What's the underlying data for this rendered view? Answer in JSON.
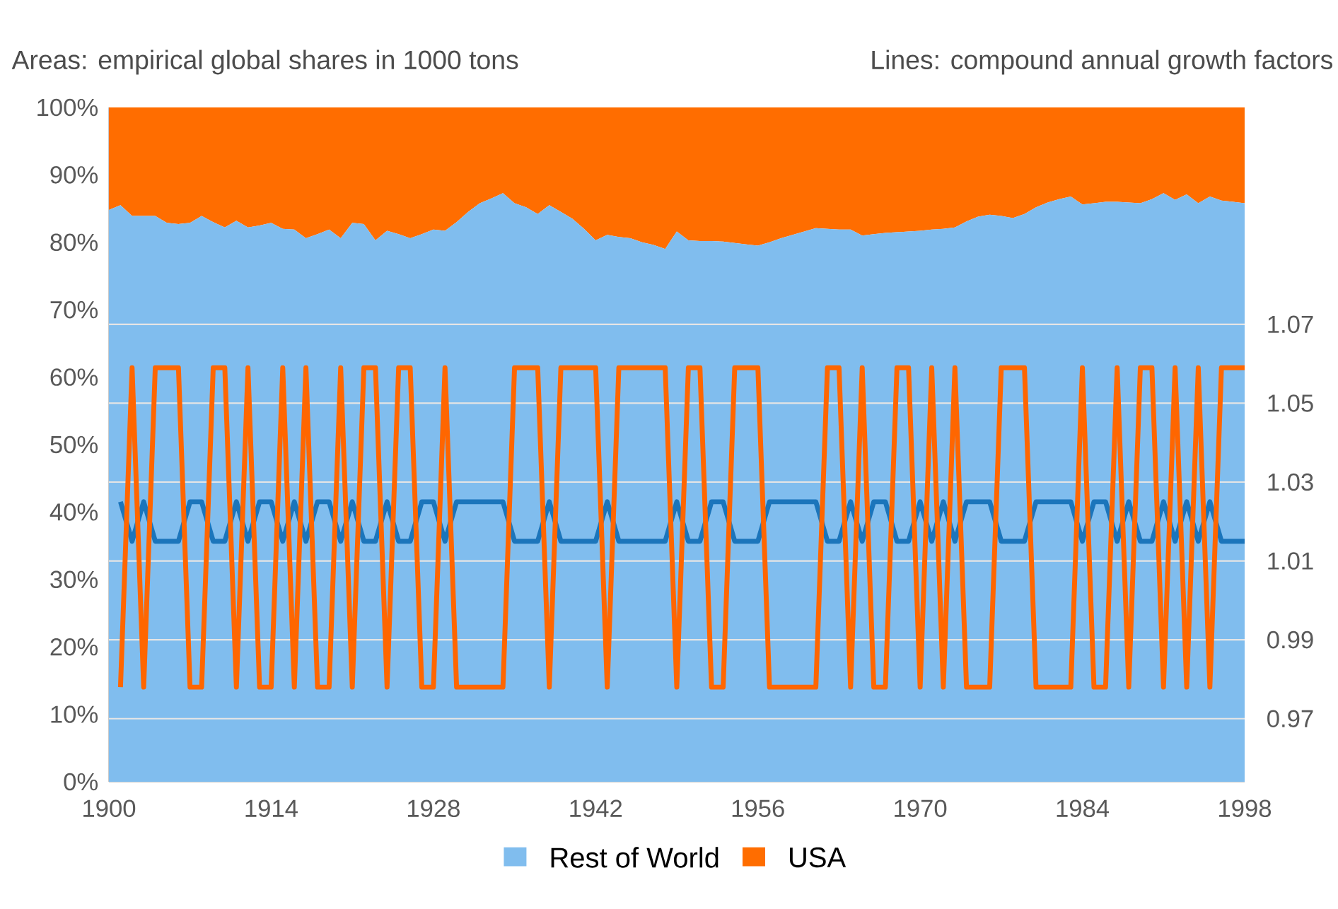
{
  "chart_data": {
    "type": "area",
    "stacked": true,
    "legend": "bottom",
    "grid": "y",
    "annotations": [
      "Areas: empirical global shares in 1000 tons",
      "Lines: compound annual growth factors"
    ],
    "x": [
      1900,
      1901,
      1902,
      1903,
      1904,
      1905,
      1906,
      1907,
      1908,
      1909,
      1910,
      1911,
      1912,
      1913,
      1914,
      1915,
      1916,
      1917,
      1918,
      1919,
      1920,
      1921,
      1922,
      1923,
      1924,
      1925,
      1926,
      1927,
      1928,
      1929,
      1930,
      1931,
      1932,
      1933,
      1934,
      1935,
      1936,
      1937,
      1938,
      1939,
      1940,
      1941,
      1942,
      1943,
      1944,
      1945,
      1946,
      1947,
      1948,
      1949,
      1950,
      1951,
      1952,
      1953,
      1954,
      1955,
      1956,
      1957,
      1958,
      1959,
      1960,
      1961,
      1962,
      1963,
      1964,
      1965,
      1966,
      1967,
      1968,
      1969,
      1970,
      1971,
      1972,
      1973,
      1974,
      1975,
      1976,
      1977,
      1978,
      1979,
      1980,
      1981,
      1982,
      1983,
      1984,
      1985,
      1986,
      1987,
      1988,
      1989,
      1990,
      1991,
      1992,
      1993,
      1994,
      1995,
      1996,
      1997,
      1998
    ],
    "xlim": [
      1900,
      1998
    ],
    "xticks": [
      1900,
      1914,
      1928,
      1942,
      1956,
      1970,
      1984,
      1998
    ],
    "ylim": [
      0,
      100
    ],
    "yticks": [
      {
        "value": 0,
        "label": "0%"
      },
      {
        "value": 10,
        "label": "10%"
      },
      {
        "value": 20,
        "label": "20%"
      },
      {
        "value": 30,
        "label": "30%"
      },
      {
        "value": 40,
        "label": "40%"
      },
      {
        "value": 50,
        "label": "50%"
      },
      {
        "value": 60,
        "label": "60%"
      },
      {
        "value": 70,
        "label": "70%"
      },
      {
        "value": 80,
        "label": "80%"
      },
      {
        "value": 90,
        "label": "90%"
      },
      {
        "value": 100,
        "label": "100%"
      }
    ],
    "y2lim": [
      0.954,
      1.125
    ],
    "y2ticks": [
      0.97,
      0.99,
      1.01,
      1.03,
      1.05,
      1.07
    ],
    "series": [
      {
        "name": "Rest of World",
        "color": "#80bdee",
        "values": [
          84.8,
          85.5,
          83.9,
          83.9,
          83.9,
          82.9,
          82.7,
          82.9,
          83.9,
          83.0,
          82.2,
          83.2,
          82.2,
          82.5,
          82.9,
          82.0,
          81.9,
          80.6,
          81.2,
          81.9,
          80.6,
          82.9,
          82.7,
          80.3,
          81.7,
          81.2,
          80.6,
          81.2,
          81.9,
          81.7,
          83.0,
          84.5,
          85.8,
          86.5,
          87.3,
          85.8,
          85.2,
          84.2,
          85.5,
          84.5,
          83.5,
          82.0,
          80.3,
          81.1,
          80.8,
          80.6,
          80.0,
          79.6,
          79.0,
          81.6,
          80.3,
          80.2,
          80.2,
          80.1,
          79.9,
          79.7,
          79.5,
          80.0,
          80.6,
          81.1,
          81.6,
          82.1,
          82.0,
          81.9,
          81.9,
          81.0,
          81.2,
          81.4,
          81.5,
          81.6,
          81.7,
          81.9,
          82.0,
          82.2,
          83.1,
          83.8,
          84.1,
          83.9,
          83.6,
          84.2,
          85.2,
          85.9,
          86.4,
          86.8,
          85.6,
          85.8,
          86.0,
          86.0,
          85.9,
          85.8,
          86.4,
          87.3,
          86.3,
          87.1,
          85.8,
          86.8,
          86.2,
          86.0,
          85.8
        ]
      },
      {
        "name": "USA",
        "color": "#ff6d00",
        "values": [
          15.2,
          14.5,
          16.1,
          16.1,
          16.1,
          17.1,
          17.3,
          17.1,
          16.1,
          17.0,
          17.8,
          16.8,
          17.8,
          17.5,
          17.1,
          18.0,
          18.1,
          19.4,
          18.8,
          18.1,
          19.4,
          17.1,
          17.3,
          19.7,
          18.3,
          18.8,
          19.4,
          18.8,
          18.1,
          18.3,
          17.0,
          15.5,
          14.2,
          13.5,
          12.7,
          14.2,
          14.8,
          15.8,
          14.5,
          15.5,
          16.5,
          18.0,
          19.7,
          18.9,
          19.2,
          19.4,
          20.0,
          20.4,
          21.0,
          18.4,
          19.7,
          19.8,
          19.8,
          19.9,
          20.1,
          20.3,
          20.5,
          20.0,
          19.4,
          18.9,
          18.4,
          17.9,
          18.0,
          18.1,
          18.1,
          19.0,
          18.8,
          18.6,
          18.5,
          18.4,
          18.3,
          18.1,
          18.0,
          17.8,
          16.9,
          16.2,
          15.9,
          16.1,
          16.4,
          15.8,
          14.8,
          14.1,
          13.6,
          13.2,
          14.4,
          14.2,
          14.0,
          14.0,
          14.1,
          14.2,
          13.6,
          12.7,
          13.7,
          12.9,
          14.2,
          13.2,
          13.8,
          14.0,
          14.2
        ]
      },
      {
        "type": "line",
        "axis": "y2",
        "color": "#1b75bb",
        "x": [
          1901,
          1902,
          1903,
          1904,
          1905,
          1906,
          1907,
          1908,
          1909,
          1910,
          1911,
          1912,
          1913,
          1914,
          1915,
          1916,
          1917,
          1918,
          1919,
          1920,
          1921,
          1922,
          1923,
          1924,
          1925,
          1926,
          1927,
          1928,
          1929,
          1930,
          1931,
          1932,
          1933,
          1934,
          1935,
          1936,
          1937,
          1938,
          1939,
          1940,
          1941,
          1942,
          1943,
          1944,
          1945,
          1946,
          1947,
          1948,
          1949,
          1950,
          1951,
          1952,
          1953,
          1954,
          1955,
          1956,
          1957,
          1958,
          1959,
          1960,
          1961,
          1962,
          1963,
          1964,
          1965,
          1966,
          1967,
          1968,
          1969,
          1970,
          1971,
          1972,
          1973,
          1974,
          1975,
          1976,
          1977,
          1978,
          1979,
          1980,
          1981,
          1982,
          1983,
          1984,
          1985,
          1986,
          1987,
          1988,
          1989,
          1990,
          1991,
          1992,
          1993,
          1994,
          1995,
          1996,
          1997,
          1998
        ],
        "values": [
          1.025,
          1.015,
          1.025,
          1.015,
          1.015,
          1.015,
          1.025,
          1.025,
          1.015,
          1.015,
          1.025,
          1.015,
          1.025,
          1.025,
          1.015,
          1.025,
          1.015,
          1.025,
          1.025,
          1.015,
          1.025,
          1.015,
          1.015,
          1.025,
          1.015,
          1.015,
          1.025,
          1.025,
          1.015,
          1.025,
          1.025,
          1.025,
          1.025,
          1.025,
          1.015,
          1.015,
          1.015,
          1.025,
          1.015,
          1.015,
          1.015,
          1.015,
          1.025,
          1.015,
          1.015,
          1.015,
          1.015,
          1.015,
          1.025,
          1.015,
          1.015,
          1.025,
          1.025,
          1.015,
          1.015,
          1.015,
          1.025,
          1.025,
          1.025,
          1.025,
          1.025,
          1.015,
          1.015,
          1.025,
          1.015,
          1.025,
          1.025,
          1.015,
          1.015,
          1.025,
          1.015,
          1.025,
          1.015,
          1.025,
          1.025,
          1.025,
          1.015,
          1.015,
          1.015,
          1.025,
          1.025,
          1.025,
          1.025,
          1.015,
          1.025,
          1.025,
          1.015,
          1.025,
          1.015,
          1.015,
          1.025,
          1.015,
          1.025,
          1.015,
          1.025,
          1.015,
          1.015,
          1.015
        ]
      },
      {
        "type": "line",
        "axis": "y2",
        "color": "#ff6600",
        "x": [
          1901,
          1902,
          1903,
          1904,
          1905,
          1906,
          1907,
          1908,
          1909,
          1910,
          1911,
          1912,
          1913,
          1914,
          1915,
          1916,
          1917,
          1918,
          1919,
          1920,
          1921,
          1922,
          1923,
          1924,
          1925,
          1926,
          1927,
          1928,
          1929,
          1930,
          1931,
          1932,
          1933,
          1934,
          1935,
          1936,
          1937,
          1938,
          1939,
          1940,
          1941,
          1942,
          1943,
          1944,
          1945,
          1946,
          1947,
          1948,
          1949,
          1950,
          1951,
          1952,
          1953,
          1954,
          1955,
          1956,
          1957,
          1958,
          1959,
          1960,
          1961,
          1962,
          1963,
          1964,
          1965,
          1966,
          1967,
          1968,
          1969,
          1970,
          1971,
          1972,
          1973,
          1974,
          1975,
          1976,
          1977,
          1978,
          1979,
          1980,
          1981,
          1982,
          1983,
          1984,
          1985,
          1986,
          1987,
          1988,
          1989,
          1990,
          1991,
          1992,
          1993,
          1994,
          1995,
          1996,
          1997,
          1998
        ],
        "values": [
          0.978,
          1.059,
          0.978,
          1.059,
          1.059,
          1.059,
          0.978,
          0.978,
          1.059,
          1.059,
          0.978,
          1.059,
          0.978,
          0.978,
          1.059,
          0.978,
          1.059,
          0.978,
          0.978,
          1.059,
          0.978,
          1.059,
          1.059,
          0.978,
          1.059,
          1.059,
          0.978,
          0.978,
          1.059,
          0.978,
          0.978,
          0.978,
          0.978,
          0.978,
          1.059,
          1.059,
          1.059,
          0.978,
          1.059,
          1.059,
          1.059,
          1.059,
          0.978,
          1.059,
          1.059,
          1.059,
          1.059,
          1.059,
          0.978,
          1.059,
          1.059,
          0.978,
          0.978,
          1.059,
          1.059,
          1.059,
          0.978,
          0.978,
          0.978,
          0.978,
          0.978,
          1.059,
          1.059,
          0.978,
          1.059,
          0.978,
          0.978,
          1.059,
          1.059,
          0.978,
          1.059,
          0.978,
          1.059,
          0.978,
          0.978,
          0.978,
          1.059,
          1.059,
          1.059,
          0.978,
          0.978,
          0.978,
          0.978,
          1.059,
          0.978,
          0.978,
          1.059,
          0.978,
          1.059,
          1.059,
          0.978,
          1.059,
          0.978,
          1.059,
          0.978,
          1.059,
          1.059,
          1.059
        ]
      }
    ]
  }
}
